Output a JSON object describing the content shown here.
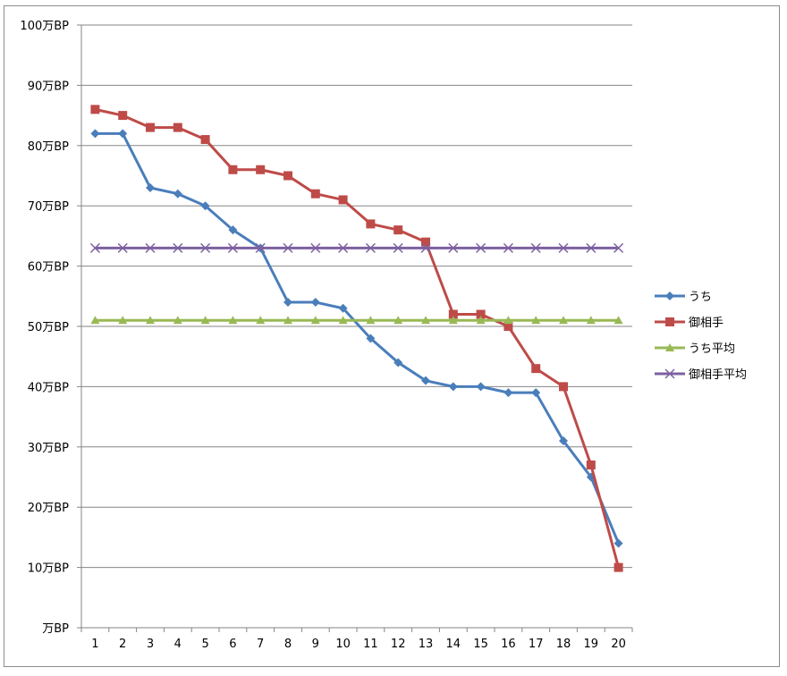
{
  "chart_data": {
    "type": "line",
    "categories": [
      "1",
      "2",
      "3",
      "4",
      "5",
      "6",
      "7",
      "8",
      "9",
      "10",
      "11",
      "12",
      "13",
      "14",
      "15",
      "16",
      "17",
      "18",
      "19",
      "20"
    ],
    "y_tick_labels": [
      "万BP",
      "10万BP",
      "20万BP",
      "30万BP",
      "40万BP",
      "50万BP",
      "60万BP",
      "70万BP",
      "80万BP",
      "90万BP",
      "100万BP"
    ],
    "ylim": [
      0,
      100
    ],
    "grid": "horizontal",
    "legend_position": "right",
    "series": [
      {
        "name": "うち",
        "color": "#4a7ebb",
        "marker": "diamond",
        "values": [
          82,
          82,
          73,
          72,
          70,
          66,
          63,
          54,
          54,
          53,
          48,
          44,
          41,
          40,
          40,
          39,
          39,
          31,
          25,
          14
        ]
      },
      {
        "name": "御相手",
        "color": "#be4b48",
        "marker": "square",
        "values": [
          86,
          85,
          83,
          83,
          81,
          76,
          76,
          75,
          72,
          71,
          67,
          66,
          64,
          52,
          52,
          50,
          43,
          40,
          27,
          10
        ]
      },
      {
        "name": "うち平均",
        "color": "#98b954",
        "marker": "triangle",
        "values": [
          51,
          51,
          51,
          51,
          51,
          51,
          51,
          51,
          51,
          51,
          51,
          51,
          51,
          51,
          51,
          51,
          51,
          51,
          51,
          51
        ]
      },
      {
        "name": "御相手平均",
        "color": "#7d60a0",
        "marker": "x",
        "values": [
          63,
          63,
          63,
          63,
          63,
          63,
          63,
          63,
          63,
          63,
          63,
          63,
          63,
          63,
          63,
          63,
          63,
          63,
          63,
          63
        ]
      }
    ]
  }
}
